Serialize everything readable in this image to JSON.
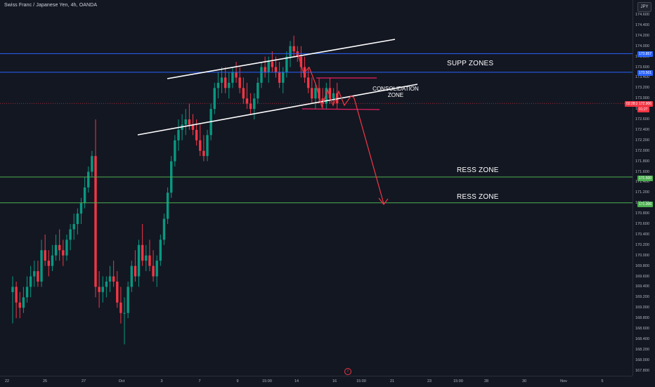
{
  "header": {
    "title": "Swiss Franc / Japanese Yen, 4h, OANDA"
  },
  "currency": "JPY",
  "price_axis": {
    "ticks": [
      "174.600",
      "174.400",
      "174.200",
      "174.000",
      "173.800",
      "173.600",
      "173.400",
      "173.200",
      "173.000",
      "172.800",
      "172.600",
      "172.400",
      "172.200",
      "172.000",
      "171.800",
      "171.600",
      "171.400",
      "171.200",
      "171.000",
      "170.800",
      "170.600",
      "170.400",
      "170.200",
      "170.000",
      "169.800",
      "169.600",
      "169.400",
      "169.200",
      "169.000",
      "168.800",
      "168.600",
      "168.400",
      "168.200",
      "168.000",
      "167.800"
    ],
    "badges": {
      "supp_upper": "173.857",
      "supp_lower": "173.501",
      "time_label": "02:28:25",
      "current": "172.906",
      "countdown": "01:27",
      "ress_upper": "171.500",
      "ress_lower": "171.006"
    }
  },
  "time_axis": {
    "labels": [
      "22",
      "25",
      "27",
      "Oct",
      "3",
      "7",
      "9",
      "15:00",
      "14",
      "16",
      "15:00",
      "21",
      "23",
      "15:00",
      "28",
      "30",
      "Nov",
      "5"
    ]
  },
  "annotations": {
    "supp_label": "SUPP ZONES",
    "ress_label_1": "RESS ZONE",
    "ress_label_2": "RESS ZONE",
    "consolidation_line1": "CONSOLIDATION",
    "consolidation_line2": "ZONE"
  },
  "event_icon": "f",
  "colors": {
    "bg": "#131722",
    "up": "#089981",
    "down": "#f23645",
    "supp_line": "#2962ff",
    "ress_line": "#4caf50",
    "channel": "#ffffff",
    "consolidation": "#e91e63",
    "arrow": "#f23645"
  },
  "chart_data": {
    "type": "candlestick",
    "symbol": "CHFJPY",
    "interval": "4h",
    "ylim": [
      167.8,
      174.6
    ],
    "levels": {
      "supp_zone_upper": 173.857,
      "supp_zone_lower": 173.501,
      "ress_zone_upper": 171.5,
      "ress_zone_lower": 171.006,
      "current_price": 172.906
    },
    "candles": [
      [
        169.3,
        169.6,
        168.7,
        169.4
      ],
      [
        169.4,
        169.5,
        168.8,
        169.1
      ],
      [
        169.1,
        169.3,
        168.8,
        169.0
      ],
      [
        169.0,
        169.4,
        168.9,
        169.2
      ],
      [
        169.2,
        169.6,
        169.1,
        169.4
      ],
      [
        169.4,
        169.8,
        169.2,
        169.6
      ],
      [
        169.6,
        169.9,
        169.4,
        169.7
      ],
      [
        169.7,
        169.9,
        169.4,
        169.5
      ],
      [
        169.5,
        170.3,
        169.4,
        170.1
      ],
      [
        170.1,
        170.4,
        169.8,
        169.9
      ],
      [
        169.9,
        170.1,
        169.6,
        169.8
      ],
      [
        169.8,
        170.2,
        169.7,
        170.0
      ],
      [
        170.0,
        170.4,
        169.9,
        170.2
      ],
      [
        170.2,
        170.5,
        169.9,
        170.1
      ],
      [
        170.1,
        170.3,
        169.8,
        170.0
      ],
      [
        170.0,
        170.4,
        169.9,
        170.3
      ],
      [
        170.3,
        170.6,
        170.1,
        170.5
      ],
      [
        170.5,
        170.8,
        170.3,
        170.6
      ],
      [
        170.6,
        170.9,
        170.4,
        170.8
      ],
      [
        170.8,
        171.1,
        170.6,
        171.0
      ],
      [
        171.0,
        171.5,
        170.9,
        171.3
      ],
      [
        171.3,
        171.7,
        171.2,
        171.6
      ],
      [
        171.6,
        172.0,
        171.5,
        171.9
      ],
      [
        171.9,
        172.6,
        169.2,
        169.4
      ],
      [
        169.4,
        169.7,
        169.0,
        169.3
      ],
      [
        169.3,
        169.6,
        169.1,
        169.4
      ],
      [
        169.4,
        169.6,
        169.2,
        169.5
      ],
      [
        169.5,
        169.8,
        169.3,
        169.6
      ],
      [
        169.6,
        169.9,
        169.4,
        169.5
      ],
      [
        169.5,
        169.7,
        169.0,
        169.1
      ],
      [
        169.1,
        169.4,
        168.7,
        168.9
      ],
      [
        168.9,
        169.2,
        168.3,
        168.9
      ],
      [
        168.9,
        169.5,
        168.8,
        169.4
      ],
      [
        169.4,
        169.9,
        169.3,
        169.8
      ],
      [
        169.8,
        170.1,
        169.5,
        169.6
      ],
      [
        169.6,
        170.3,
        169.4,
        170.2
      ],
      [
        170.2,
        170.6,
        169.8,
        169.9
      ],
      [
        169.9,
        170.2,
        169.7,
        170.0
      ],
      [
        170.0,
        170.3,
        169.7,
        169.8
      ],
      [
        169.8,
        170.1,
        169.5,
        169.6
      ],
      [
        169.6,
        170.0,
        169.4,
        169.9
      ],
      [
        169.9,
        170.4,
        169.8,
        170.3
      ],
      [
        170.3,
        170.8,
        170.2,
        170.7
      ],
      [
        170.7,
        171.3,
        170.6,
        171.2
      ],
      [
        171.2,
        171.9,
        171.1,
        171.8
      ],
      [
        171.8,
        172.3,
        171.7,
        172.2
      ],
      [
        172.2,
        172.6,
        172.0,
        172.4
      ],
      [
        172.4,
        172.7,
        172.2,
        172.5
      ],
      [
        172.5,
        172.8,
        172.3,
        172.6
      ],
      [
        172.6,
        172.9,
        172.4,
        172.5
      ],
      [
        172.5,
        172.7,
        172.3,
        172.4
      ],
      [
        172.4,
        172.6,
        172.1,
        172.2
      ],
      [
        172.2,
        172.5,
        171.9,
        172.0
      ],
      [
        172.0,
        172.3,
        171.8,
        171.9
      ],
      [
        171.9,
        172.4,
        171.8,
        172.3
      ],
      [
        172.3,
        172.9,
        172.2,
        172.8
      ],
      [
        172.8,
        173.3,
        172.7,
        173.2
      ],
      [
        173.2,
        173.5,
        173.0,
        173.3
      ],
      [
        173.3,
        173.6,
        173.1,
        173.4
      ],
      [
        173.4,
        173.6,
        173.1,
        173.2
      ],
      [
        173.2,
        173.5,
        173.0,
        173.3
      ],
      [
        173.3,
        173.6,
        173.2,
        173.5
      ],
      [
        173.5,
        173.7,
        173.3,
        173.4
      ],
      [
        173.4,
        173.6,
        173.1,
        173.2
      ],
      [
        173.2,
        173.4,
        172.9,
        173.0
      ],
      [
        173.0,
        173.3,
        172.8,
        172.9
      ],
      [
        172.9,
        173.1,
        172.7,
        172.8
      ],
      [
        172.8,
        173.1,
        172.6,
        173.0
      ],
      [
        173.0,
        173.4,
        172.9,
        173.3
      ],
      [
        173.3,
        173.7,
        173.2,
        173.6
      ],
      [
        173.6,
        173.8,
        173.4,
        173.5
      ],
      [
        173.5,
        173.8,
        173.3,
        173.7
      ],
      [
        173.7,
        173.9,
        173.5,
        173.6
      ],
      [
        173.6,
        173.8,
        173.4,
        173.5
      ],
      [
        173.5,
        173.7,
        173.2,
        173.3
      ],
      [
        173.3,
        173.6,
        173.1,
        173.5
      ],
      [
        173.5,
        173.9,
        173.4,
        173.8
      ],
      [
        173.8,
        174.1,
        173.6,
        174.0
      ],
      [
        174.0,
        174.2,
        173.8,
        173.9
      ],
      [
        173.9,
        174.0,
        173.7,
        173.8
      ],
      [
        173.8,
        174.0,
        173.4,
        173.6
      ],
      [
        173.6,
        173.8,
        173.3,
        173.4
      ],
      [
        173.4,
        173.6,
        173.1,
        173.2
      ],
      [
        173.2,
        173.4,
        172.9,
        173.0
      ],
      [
        173.0,
        173.3,
        172.8,
        173.2
      ],
      [
        173.2,
        173.4,
        172.9,
        173.0
      ],
      [
        173.0,
        173.2,
        172.8,
        172.9
      ],
      [
        172.9,
        173.3,
        172.8,
        173.2
      ],
      [
        173.2,
        173.4,
        172.9,
        173.0
      ],
      [
        173.0,
        173.2,
        172.9,
        173.1
      ],
      [
        173.1,
        173.3,
        172.8,
        172.906
      ]
    ]
  }
}
